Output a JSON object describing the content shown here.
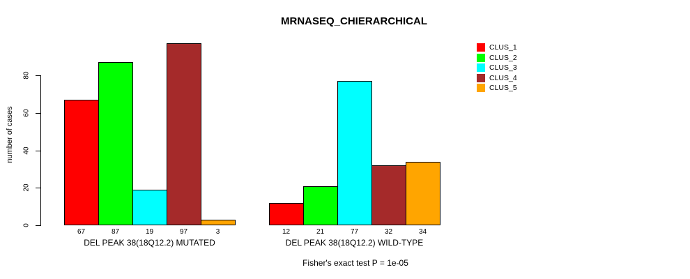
{
  "chart_data": {
    "type": "bar",
    "title": "MRNASEQ_CHIERARCHICAL",
    "ylabel": "number of cases",
    "xlabel": "",
    "ylim": [
      0,
      97
    ],
    "yticks": [
      0,
      20,
      40,
      60,
      80
    ],
    "grid": false,
    "legend_position": "right",
    "series_names": [
      "CLUS_1",
      "CLUS_2",
      "CLUS_3",
      "CLUS_4",
      "CLUS_5"
    ],
    "colors": [
      "#FF0000",
      "#00FF00",
      "#00FFFF",
      "#A52A2A",
      "#FFA500"
    ],
    "groups": [
      {
        "label": "DEL PEAK 38(18Q12.2) MUTATED",
        "values": [
          67,
          87,
          19,
          97,
          3
        ]
      },
      {
        "label": "DEL PEAK 38(18Q12.2) WILD-TYPE",
        "values": [
          12,
          21,
          77,
          32,
          34
        ]
      }
    ],
    "annotation": "Fisher's exact test P = 1e-05"
  },
  "legend": {
    "items": [
      {
        "label": "CLUS_1",
        "color": "#FF0000"
      },
      {
        "label": "CLUS_2",
        "color": "#00FF00"
      },
      {
        "label": "CLUS_3",
        "color": "#00FFFF"
      },
      {
        "label": "CLUS_4",
        "color": "#A52A2A"
      },
      {
        "label": "CLUS_5",
        "color": "#FFA500"
      }
    ]
  }
}
